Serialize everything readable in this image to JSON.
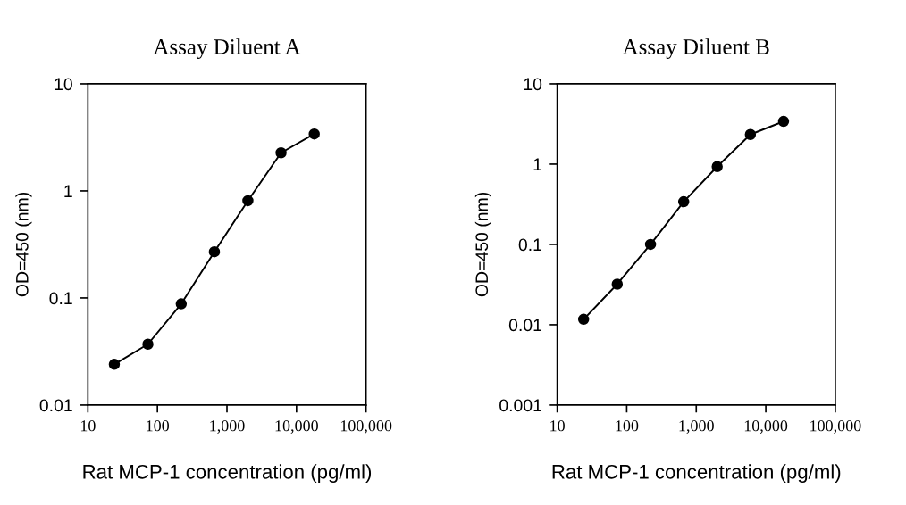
{
  "chart_data": [
    {
      "type": "line",
      "title": "Assay Diluent A",
      "xlabel": "Rat MCP-1 concentration (pg/ml)",
      "ylabel": "OD=450 (nm)",
      "log": "xy",
      "marker": "circle",
      "line_style": "solid",
      "grid": false,
      "legend": false,
      "x": [
        24,
        73,
        220,
        660,
        2000,
        6000,
        18000
      ],
      "series": [
        {
          "color": "#000000",
          "values": [
            0.024,
            0.037,
            0.088,
            0.27,
            0.81,
            2.27,
            3.4
          ]
        }
      ],
      "xlim": [
        10,
        100000
      ],
      "xticks": [
        10,
        100,
        {
          "value": 1000,
          "label": "1,000"
        },
        {
          "value": 10000,
          "label": "10,000"
        },
        {
          "value": 100000,
          "label": "100,000"
        }
      ],
      "ylim": [
        0.01,
        10
      ],
      "yticks": [
        0.01,
        0.1,
        1,
        10
      ]
    },
    {
      "type": "line",
      "title": "Assay Diluent B",
      "xlabel": "Rat MCP-1 concentration (pg/ml)",
      "ylabel": "OD=450 (nm)",
      "log": "xy",
      "marker": "circle",
      "line_style": "solid",
      "grid": false,
      "legend": false,
      "x": [
        24,
        73,
        220,
        660,
        2000,
        6000,
        18000
      ],
      "series": [
        {
          "color": "#000000",
          "values": [
            0.0117,
            0.032,
            0.1,
            0.34,
            0.93,
            2.34,
            3.4
          ]
        }
      ],
      "xlim": [
        10,
        100000
      ],
      "xticks": [
        10,
        100,
        {
          "value": 1000,
          "label": "1,000"
        },
        {
          "value": 10000,
          "label": "10,000"
        },
        {
          "value": 100000,
          "label": "100,000"
        }
      ],
      "ylim": [
        0.001,
        10
      ],
      "yticks": [
        0.001,
        0.01,
        0.1,
        1,
        10
      ]
    }
  ]
}
